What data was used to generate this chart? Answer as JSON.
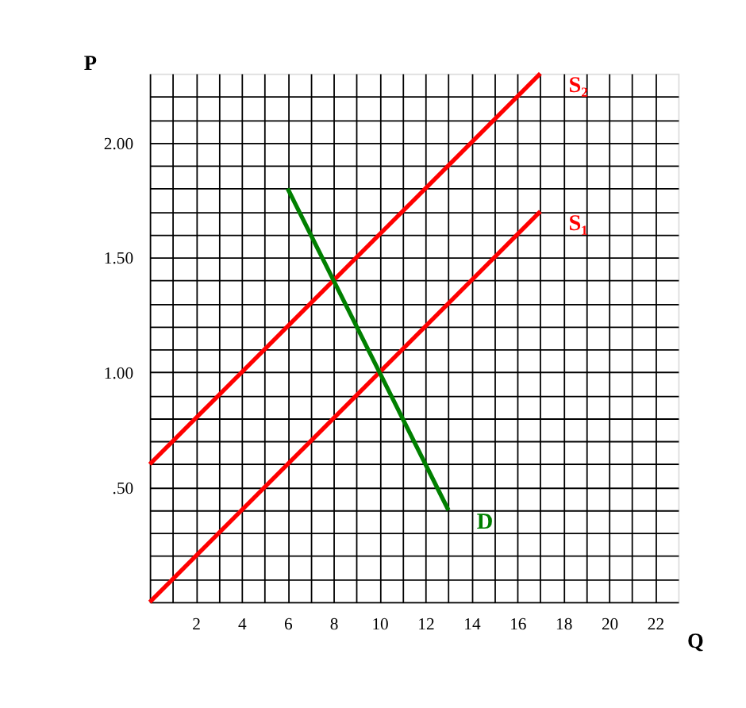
{
  "chart_data": {
    "type": "line",
    "xlabel": "Q",
    "ylabel": "P",
    "xlim": [
      0,
      23
    ],
    "ylim": [
      0,
      2.3
    ],
    "xticks": [
      {
        "value": 1,
        "label": null
      },
      2,
      {
        "value": 3,
        "label": null
      },
      4,
      {
        "value": 5,
        "label": null
      },
      6,
      {
        "value": 7,
        "label": null
      },
      8,
      {
        "value": 9,
        "label": null
      },
      10,
      {
        "value": 11,
        "label": null
      },
      12,
      {
        "value": 13,
        "label": null
      },
      14,
      {
        "value": 15,
        "label": null
      },
      16,
      {
        "value": 17,
        "label": null
      },
      18,
      {
        "value": 19,
        "label": null
      },
      20,
      {
        "value": 21,
        "label": null
      },
      22
    ],
    "yticks": [
      {
        "value": 0.1,
        "label": null
      },
      {
        "value": 0.2,
        "label": null
      },
      {
        "value": 0.3,
        "label": null
      },
      {
        "value": 0.4,
        "label": null
      },
      {
        "value": 0.5,
        "label": ".50"
      },
      {
        "value": 0.6,
        "label": null
      },
      {
        "value": 0.7,
        "label": null
      },
      {
        "value": 0.8,
        "label": null
      },
      {
        "value": 0.9,
        "label": null
      },
      {
        "value": 1.0,
        "label": "1.00"
      },
      {
        "value": 1.1,
        "label": null
      },
      {
        "value": 1.2,
        "label": null
      },
      {
        "value": 1.3,
        "label": null
      },
      {
        "value": 1.4,
        "label": null
      },
      {
        "value": 1.5,
        "label": "1.50"
      },
      {
        "value": 1.6,
        "label": null
      },
      {
        "value": 1.7,
        "label": null
      },
      {
        "value": 1.8,
        "label": null
      },
      {
        "value": 1.9,
        "label": null
      },
      {
        "value": 2.0,
        "label": "2.00"
      },
      {
        "value": 2.1,
        "label": null
      },
      {
        "value": 2.2,
        "label": null
      }
    ],
    "grid": true,
    "marker": "none",
    "line_style": "solid",
    "series": [
      {
        "name": "S₂",
        "color": "#ff0000",
        "x": [
          0,
          17
        ],
        "values": [
          0.6,
          2.3
        ]
      },
      {
        "name": "S₁",
        "color": "#ff0000",
        "x": [
          0,
          17
        ],
        "values": [
          0,
          1.7
        ]
      },
      {
        "name": "D",
        "color": "#008000",
        "x": [
          6,
          13
        ],
        "values": [
          1.8,
          0.4
        ]
      }
    ]
  }
}
